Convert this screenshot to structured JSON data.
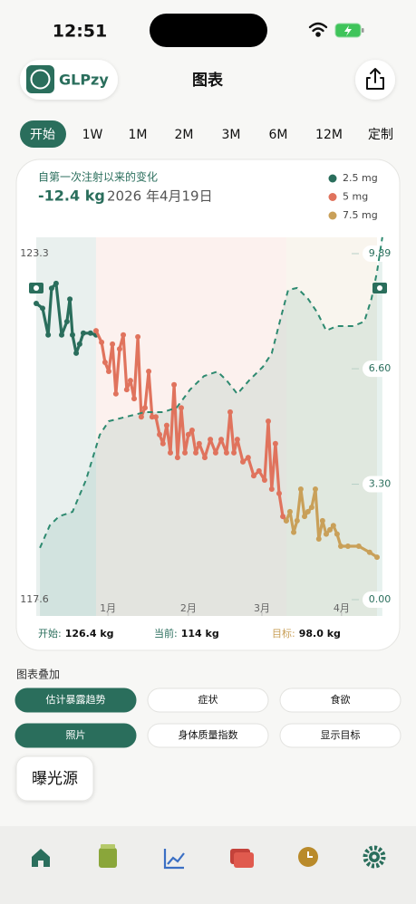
{
  "status_bar": {
    "time": "12:51"
  },
  "header": {
    "app_name": "GLPzy",
    "title": "图表"
  },
  "range_tabs": [
    "开始",
    "1W",
    "1M",
    "2M",
    "3M",
    "6M",
    "12M",
    "定制"
  ],
  "chart_data": {
    "type": "line",
    "subtitle": "自第一次注射以来的变化",
    "change": "-12.4 kg",
    "date": "2026 年4月19日",
    "xlim": [
      0,
      128.8
    ],
    "xticks": [
      {
        "value": 27.1,
        "label": "1月"
      },
      {
        "value": 57.5,
        "label": "2月"
      },
      {
        "value": 85.3,
        "label": "3月"
      },
      {
        "value": 115.4,
        "label": "4月"
      }
    ],
    "ylim": [
      117.6,
      123.3
    ],
    "yticks": [
      117.6,
      123.3
    ],
    "y2lim": [
      0,
      9.89
    ],
    "y2ticks": [
      {
        "value": 0,
        "label": "0.00"
      },
      {
        "value": 3.3,
        "label": "3.30"
      },
      {
        "value": 6.6,
        "label": "6.60"
      },
      9.89
    ],
    "series": [
      {
        "name": "2.5 mg",
        "color": "#2a6e5c",
        "x": [
          0,
          2.4,
          4.5,
          5.8,
          7.5,
          9.6,
          11.6,
          12.7,
          13.7,
          15.1,
          16.4,
          17.8,
          20.5,
          22.6
        ],
        "values": [
          122.48,
          122.4,
          121.96,
          122.73,
          122.81,
          121.96,
          122.18,
          122.55,
          121.96,
          121.66,
          121.81,
          121.99,
          121.99,
          121.96
        ]
      },
      {
        "name": "5 mg",
        "color": "#e0735d",
        "x": [
          22.6,
          24.7,
          26.0,
          27.4,
          28.8,
          30.1,
          31.5,
          32.9,
          34.2,
          35.6,
          37.0,
          38.4,
          39.7,
          41.1,
          42.5,
          43.8,
          45.2,
          46.6,
          47.9,
          49.3,
          50.7,
          52.1,
          53.4,
          54.8,
          56.2,
          57.5,
          58.9,
          60.3,
          61.6,
          63.7,
          65.8,
          67.8,
          69.9,
          71.9,
          73.3,
          74.7,
          76.0,
          78.1,
          80.1,
          82.2,
          84.2,
          86.3,
          87.7,
          89.0,
          90.4,
          91.8,
          93.2,
          94.5
        ],
        "values": [
          122.03,
          121.84,
          121.51,
          121.36,
          121.81,
          120.99,
          121.73,
          121.96,
          121.06,
          121.21,
          120.91,
          121.93,
          120.61,
          120.76,
          121.36,
          120.61,
          120.61,
          120.32,
          120.17,
          120.47,
          120.02,
          121.14,
          119.94,
          120.76,
          120.02,
          120.32,
          120.39,
          120.02,
          120.17,
          119.94,
          120.24,
          120.02,
          120.24,
          120.02,
          120.69,
          120.02,
          120.24,
          119.87,
          119.94,
          119.64,
          119.72,
          119.57,
          120.54,
          119.42,
          120.17,
          119.35,
          118.97,
          118.9
        ]
      },
      {
        "name": "7.5 mg",
        "color": "#c9a059",
        "x": [
          94.5,
          95.9,
          97.3,
          98.6,
          100.0,
          101.4,
          102.7,
          104.1,
          105.5,
          106.8,
          108.2,
          109.6,
          111.0,
          112.3,
          113.7,
          115.1,
          117.8,
          121.9,
          126.0,
          128.8
        ],
        "values": [
          118.9,
          119.05,
          118.71,
          118.9,
          119.42,
          118.97,
          119.05,
          119.12,
          119.42,
          118.6,
          118.9,
          118.68,
          118.75,
          118.82,
          118.68,
          118.48,
          118.48,
          118.48,
          118.38,
          118.3
        ]
      },
      {
        "color": "#2e8a70",
        "axis": "y2",
        "style": "dashed",
        "x": [
          1.4,
          5.1,
          8.6,
          13.7,
          18.8,
          24.0,
          27.4,
          34.2,
          41.1,
          47.9,
          53.1,
          58.2,
          63.4,
          68.5,
          71.9,
          76.0,
          80.5,
          85.6,
          89.0,
          92.5,
          95.2,
          98.6,
          102.7,
          106.2,
          109.6,
          113.7,
          119.9,
          124.0,
          126.7,
          128.8,
          130.8
        ],
        "values": [
          1.48,
          2.12,
          2.38,
          2.51,
          3.42,
          4.71,
          5.1,
          5.23,
          5.36,
          5.36,
          5.49,
          6.01,
          6.39,
          6.52,
          6.27,
          5.88,
          6.27,
          6.65,
          7.04,
          8.08,
          8.85,
          8.91,
          8.6,
          8.21,
          7.69,
          7.82,
          7.82,
          7.95,
          8.6,
          9.37,
          10.36
        ]
      }
    ],
    "footer": [
      {
        "label": "开始:",
        "value": "126.4 kg"
      },
      {
        "label": "当前:",
        "value": "114 kg"
      },
      {
        "label": "目标:",
        "value": "98.0 kg"
      }
    ]
  },
  "overlay": {
    "title": "图表叠加",
    "options": [
      "估计暴露趋势",
      "症状",
      "食欲",
      "照片",
      "身体质量指数",
      "显示目标"
    ],
    "source": "曝光源"
  }
}
